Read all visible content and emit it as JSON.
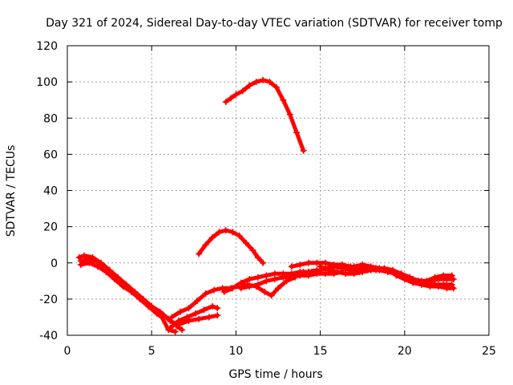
{
  "chart_data": {
    "type": "scatter",
    "title": "Day 321 of 2024, Sidereal Day-to-day VTEC variation (SDTVAR) for receiver tomp",
    "xlabel": "GPS time / hours",
    "ylabel": "SDTVAR / TECUs",
    "xlim": [
      0,
      25
    ],
    "ylim": [
      -40,
      120
    ],
    "xticks": [
      0,
      5,
      10,
      15,
      20,
      25
    ],
    "yticks": [
      -40,
      -20,
      0,
      20,
      40,
      60,
      80,
      100,
      120
    ],
    "grid": true,
    "legend": "none",
    "marker": "plus",
    "series_color": "#ff0000",
    "series": [
      {
        "name": "arc-high",
        "points": [
          [
            9.4,
            89
          ],
          [
            9.7,
            91
          ],
          [
            10.0,
            93
          ],
          [
            10.4,
            95
          ],
          [
            10.8,
            98
          ],
          [
            11.2,
            100
          ],
          [
            11.6,
            101
          ],
          [
            12.0,
            100
          ],
          [
            12.4,
            97
          ],
          [
            12.8,
            90
          ],
          [
            13.2,
            82
          ],
          [
            13.6,
            72
          ],
          [
            14.0,
            62
          ]
        ]
      },
      {
        "name": "arc-mid",
        "points": [
          [
            7.8,
            5
          ],
          [
            8.2,
            10
          ],
          [
            8.6,
            14
          ],
          [
            9.0,
            17
          ],
          [
            9.4,
            18
          ],
          [
            9.8,
            17
          ],
          [
            10.2,
            15
          ],
          [
            10.6,
            11
          ],
          [
            11.0,
            7
          ],
          [
            11.3,
            3
          ],
          [
            11.6,
            0
          ]
        ]
      },
      {
        "name": "arc-1",
        "points": [
          [
            0.7,
            3
          ],
          [
            1.0,
            4
          ],
          [
            1.5,
            3
          ],
          [
            2.0,
            0
          ],
          [
            2.5,
            -4
          ],
          [
            3.0,
            -8
          ],
          [
            3.5,
            -12
          ],
          [
            4.0,
            -16
          ],
          [
            4.5,
            -20
          ],
          [
            5.0,
            -24
          ],
          [
            5.5,
            -27
          ],
          [
            6.0,
            -31
          ],
          [
            6.5,
            -35
          ],
          [
            6.8,
            -37
          ]
        ]
      },
      {
        "name": "arc-2",
        "points": [
          [
            0.8,
            1
          ],
          [
            1.2,
            2
          ],
          [
            1.7,
            1
          ],
          [
            2.2,
            -2
          ],
          [
            2.7,
            -6
          ],
          [
            3.2,
            -10
          ],
          [
            3.7,
            -14
          ],
          [
            4.2,
            -18
          ],
          [
            4.7,
            -22
          ],
          [
            5.2,
            -26
          ],
          [
            5.7,
            -29
          ],
          [
            6.1,
            -32
          ],
          [
            6.5,
            -34
          ]
        ]
      },
      {
        "name": "arc-3",
        "points": [
          [
            0.8,
            -1
          ],
          [
            1.3,
            0
          ],
          [
            1.8,
            -2
          ],
          [
            2.3,
            -5
          ],
          [
            2.8,
            -9
          ],
          [
            3.3,
            -13
          ],
          [
            3.8,
            -16
          ],
          [
            4.3,
            -20
          ],
          [
            4.8,
            -24
          ],
          [
            5.3,
            -28
          ],
          [
            5.6,
            -30
          ],
          [
            6.0,
            -37
          ],
          [
            6.4,
            -38
          ]
        ]
      },
      {
        "name": "arc-4",
        "points": [
          [
            6.2,
            -30
          ],
          [
            6.7,
            -27
          ],
          [
            7.2,
            -25
          ],
          [
            7.7,
            -21
          ],
          [
            8.2,
            -17
          ],
          [
            8.7,
            -15
          ],
          [
            9.2,
            -14
          ],
          [
            9.7,
            -14
          ],
          [
            10.2,
            -13
          ],
          [
            10.7,
            -12
          ],
          [
            11.2,
            -13
          ],
          [
            11.7,
            -16
          ],
          [
            12.1,
            -18
          ],
          [
            12.5,
            -14
          ],
          [
            13.0,
            -10
          ],
          [
            13.5,
            -8
          ]
        ]
      },
      {
        "name": "arc-5",
        "points": [
          [
            6.1,
            -36
          ],
          [
            6.6,
            -32
          ],
          [
            7.1,
            -30
          ],
          [
            7.6,
            -28
          ],
          [
            8.1,
            -26
          ],
          [
            8.6,
            -24
          ],
          [
            8.9,
            -25
          ]
        ]
      },
      {
        "name": "arc-6",
        "points": [
          [
            6.6,
            -34
          ],
          [
            7.2,
            -32
          ],
          [
            7.8,
            -31
          ],
          [
            8.4,
            -30
          ],
          [
            8.9,
            -29
          ]
        ]
      },
      {
        "name": "arc-7",
        "points": [
          [
            9.3,
            -16
          ],
          [
            9.8,
            -14
          ],
          [
            10.3,
            -11
          ],
          [
            10.8,
            -9
          ],
          [
            11.3,
            -8
          ],
          [
            11.8,
            -7
          ],
          [
            12.3,
            -6
          ],
          [
            12.8,
            -6
          ],
          [
            13.3,
            -6
          ],
          [
            13.8,
            -5
          ],
          [
            14.3,
            -5
          ],
          [
            14.8,
            -4
          ]
        ]
      },
      {
        "name": "arc-8",
        "points": [
          [
            10.3,
            -14
          ],
          [
            10.8,
            -13
          ],
          [
            11.3,
            -12
          ],
          [
            11.8,
            -10
          ],
          [
            12.3,
            -9
          ],
          [
            12.8,
            -8
          ],
          [
            13.3,
            -8
          ],
          [
            13.8,
            -7
          ],
          [
            14.3,
            -7
          ],
          [
            14.8,
            -6
          ],
          [
            15.3,
            -6
          ],
          [
            15.8,
            -6
          ],
          [
            16.3,
            -5
          ]
        ]
      },
      {
        "name": "arc-9",
        "points": [
          [
            13.3,
            -2
          ],
          [
            13.8,
            -1
          ],
          [
            14.3,
            0
          ],
          [
            14.8,
            0
          ],
          [
            15.3,
            0
          ],
          [
            15.8,
            -1
          ],
          [
            16.3,
            -1
          ],
          [
            16.8,
            -2
          ],
          [
            17.3,
            -3
          ],
          [
            17.8,
            -3
          ],
          [
            18.3,
            -4
          ],
          [
            18.8,
            -4
          ],
          [
            19.3,
            -5
          ],
          [
            19.8,
            -6
          ],
          [
            20.3,
            -8
          ],
          [
            20.8,
            -10
          ],
          [
            21.3,
            -11
          ],
          [
            21.8,
            -12
          ],
          [
            22.3,
            -12
          ],
          [
            22.8,
            -12
          ]
        ]
      },
      {
        "name": "arc-10",
        "points": [
          [
            15.0,
            -2
          ],
          [
            15.5,
            -4
          ],
          [
            16.0,
            -5
          ],
          [
            16.5,
            -6
          ],
          [
            17.0,
            -6
          ],
          [
            17.5,
            -5
          ],
          [
            18.0,
            -4
          ],
          [
            18.5,
            -4
          ],
          [
            19.0,
            -5
          ],
          [
            19.5,
            -6
          ],
          [
            20.0,
            -8
          ],
          [
            20.5,
            -9
          ],
          [
            21.0,
            -10
          ],
          [
            21.5,
            -10
          ],
          [
            22.0,
            -9
          ],
          [
            22.5,
            -9
          ],
          [
            22.9,
            -9
          ]
        ]
      },
      {
        "name": "arc-11",
        "points": [
          [
            15.3,
            -3
          ],
          [
            15.8,
            -2
          ],
          [
            16.3,
            -3
          ],
          [
            16.8,
            -4
          ],
          [
            17.3,
            -5
          ],
          [
            17.8,
            -4
          ],
          [
            18.3,
            -3
          ],
          [
            18.8,
            -3
          ],
          [
            19.3,
            -4
          ],
          [
            19.8,
            -6
          ],
          [
            20.3,
            -8
          ],
          [
            20.8,
            -10
          ],
          [
            21.3,
            -10
          ],
          [
            21.8,
            -8
          ],
          [
            22.3,
            -7
          ],
          [
            22.8,
            -7
          ]
        ]
      },
      {
        "name": "arc-12",
        "points": [
          [
            14.0,
            -5
          ],
          [
            14.5,
            -5
          ],
          [
            15.0,
            -4
          ],
          [
            15.5,
            -3
          ],
          [
            16.0,
            -2
          ],
          [
            16.5,
            -3
          ],
          [
            17.0,
            -2
          ],
          [
            17.5,
            -1
          ],
          [
            18.0,
            -2
          ],
          [
            18.5,
            -3
          ],
          [
            19.0,
            -4
          ]
        ]
      },
      {
        "name": "arc-13",
        "points": [
          [
            19.5,
            -7
          ],
          [
            20.0,
            -9
          ],
          [
            20.5,
            -11
          ],
          [
            21.0,
            -12
          ],
          [
            21.5,
            -13
          ],
          [
            22.0,
            -13
          ],
          [
            22.5,
            -14
          ],
          [
            22.9,
            -14
          ]
        ]
      }
    ]
  }
}
